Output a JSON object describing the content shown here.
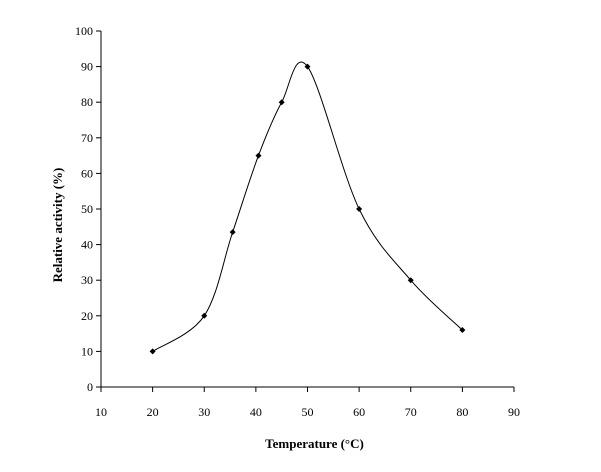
{
  "chart_data": {
    "type": "scatter",
    "title": "",
    "xlabel": "Temperature (°C)",
    "ylabel": "Relative activity (%)",
    "xlim": [
      10,
      90
    ],
    "ylim": [
      0,
      100
    ],
    "xticks": [
      10,
      20,
      30,
      40,
      50,
      60,
      70,
      80,
      90
    ],
    "yticks": [
      0,
      10,
      20,
      30,
      40,
      50,
      60,
      70,
      80,
      90,
      100
    ],
    "grid": false,
    "legend": "none",
    "marker": "diamond",
    "line": "smooth",
    "colors": {
      "line": "#000000",
      "marker": "#000000",
      "axis": "#000000"
    },
    "series": [
      {
        "x": [
          20,
          30,
          35.5,
          40.5,
          45,
          50,
          60,
          70,
          80
        ],
        "y": [
          10,
          20,
          43.5,
          65,
          80,
          90,
          50,
          30,
          16
        ]
      }
    ]
  }
}
